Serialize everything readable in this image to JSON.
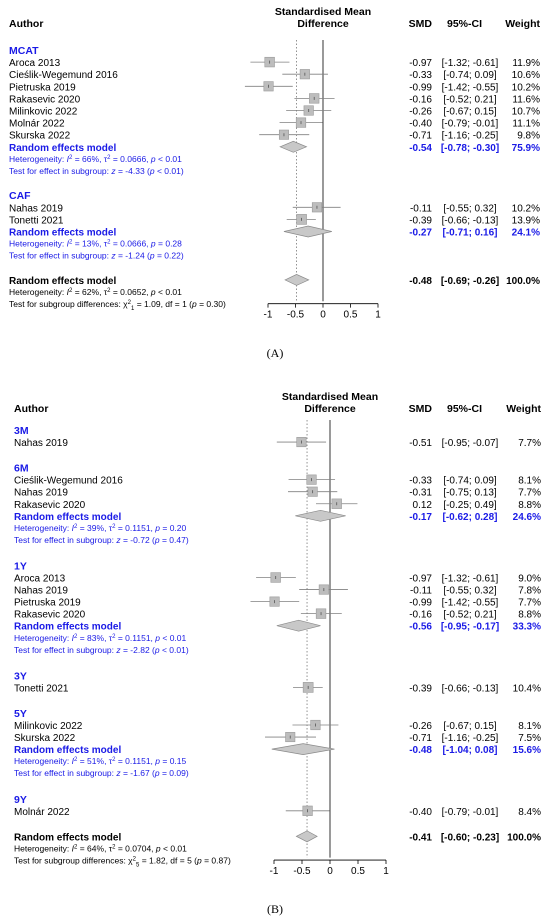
{
  "colors": {
    "subgroup_blue": "#1a1ae6",
    "box_fill": "#bdbdbd",
    "box_stroke": "#9a9a9a",
    "diamond_fill": "#c8c8c8",
    "diamond_stroke": "#8a8a8a",
    "line": "#808080",
    "text": "#000000"
  },
  "chart_data": [
    {
      "type": "forest",
      "panel_label": "(A)",
      "headers": {
        "author": "Author",
        "smd_title_line1": "Standardised Mean",
        "smd_title_line2": "Difference",
        "smd": "SMD",
        "ci": "95%-CI",
        "weight": "Weight"
      },
      "xlim": [
        -1,
        1
      ],
      "ticks": [
        -1,
        -0.5,
        0,
        0.5,
        1
      ],
      "tick_labels": [
        "-1",
        "-0.5",
        "0",
        "0.5",
        "1"
      ],
      "reference_line": 0,
      "overall_line": -0.48,
      "rows": [
        {
          "kind": "group",
          "label": "MCAT"
        },
        {
          "kind": "study",
          "label": "Aroca 2013",
          "smd": -0.97,
          "lo": -1.32,
          "hi": -0.61,
          "smd_text": "-0.97",
          "ci_text": "[-1.32; -0.61]",
          "weight_text": "11.9%",
          "weight": 11.9
        },
        {
          "kind": "study",
          "label": "Cieślik-Wegemund 2016",
          "smd": -0.33,
          "lo": -0.74,
          "hi": 0.09,
          "smd_text": "-0.33",
          "ci_text": "[-0.74; 0.09]",
          "weight_text": "10.6%",
          "weight": 10.6
        },
        {
          "kind": "study",
          "label": "Pietruska 2019",
          "smd": -0.99,
          "lo": -1.42,
          "hi": -0.55,
          "smd_text": "-0.99",
          "ci_text": "[-1.42; -0.55]",
          "weight_text": "10.2%",
          "weight": 10.2
        },
        {
          "kind": "study",
          "label": "Rakasevic 2020",
          "smd": -0.16,
          "lo": -0.52,
          "hi": 0.21,
          "smd_text": "-0.16",
          "ci_text": "[-0.52; 0.21]",
          "weight_text": "11.6%",
          "weight": 11.6
        },
        {
          "kind": "study",
          "label": "Milinkovic 2022",
          "smd": -0.26,
          "lo": -0.67,
          "hi": 0.15,
          "smd_text": "-0.26",
          "ci_text": "[-0.67; 0.15]",
          "weight_text": "10.7%",
          "weight": 10.7
        },
        {
          "kind": "study",
          "label": "Molnár 2022",
          "smd": -0.4,
          "lo": -0.79,
          "hi": -0.01,
          "smd_text": "-0.40",
          "ci_text": "[-0.79; -0.01]",
          "weight_text": "11.1%",
          "weight": 11.1
        },
        {
          "kind": "study",
          "label": "Skurska 2022",
          "smd": -0.71,
          "lo": -1.16,
          "hi": -0.25,
          "smd_text": "-0.71",
          "ci_text": "[-1.16; -0.25]",
          "weight_text": "9.8%",
          "weight": 9.8
        },
        {
          "kind": "pooled",
          "label": "Random effects model",
          "smd": -0.54,
          "lo": -0.78,
          "hi": -0.3,
          "smd_text": "-0.54",
          "ci_text": "[-0.78; -0.30]",
          "weight_text": "75.9%"
        },
        {
          "kind": "note",
          "segments": [
            {
              "t": "Heterogeneity: "
            },
            {
              "t": "I",
              "i": true
            },
            {
              "t": "2",
              "sup": true
            },
            {
              "t": " = 66%, τ"
            },
            {
              "t": "2",
              "sup": true
            },
            {
              "t": " = 0.0666, "
            },
            {
              "t": "p",
              "i": true
            },
            {
              "t": " < 0.01"
            }
          ]
        },
        {
          "kind": "note",
          "segments": [
            {
              "t": "Test for effect in subgroup: "
            },
            {
              "t": "z",
              "i": true
            },
            {
              "t": " = -4.33 ("
            },
            {
              "t": "p",
              "i": true
            },
            {
              "t": " < 0.01)"
            }
          ]
        },
        {
          "kind": "gap"
        },
        {
          "kind": "group",
          "label": "CAF"
        },
        {
          "kind": "study",
          "label": "Nahas 2019",
          "smd": -0.11,
          "lo": -0.55,
          "hi": 0.32,
          "smd_text": "-0.11",
          "ci_text": "[-0.55; 0.32]",
          "weight_text": "10.2%",
          "weight": 10.2
        },
        {
          "kind": "study",
          "label": "Tonetti 2021",
          "smd": -0.39,
          "lo": -0.66,
          "hi": -0.13,
          "smd_text": "-0.39",
          "ci_text": "[-0.66; -0.13]",
          "weight_text": "13.9%",
          "weight": 13.9
        },
        {
          "kind": "pooled",
          "label": "Random effects model",
          "smd": -0.27,
          "lo": -0.71,
          "hi": 0.16,
          "smd_text": "-0.27",
          "ci_text": "[-0.71; 0.16]",
          "weight_text": "24.1%"
        },
        {
          "kind": "note",
          "segments": [
            {
              "t": "Heterogeneity: "
            },
            {
              "t": "I",
              "i": true
            },
            {
              "t": "2",
              "sup": true
            },
            {
              "t": " = 13%, τ"
            },
            {
              "t": "2",
              "sup": true
            },
            {
              "t": " = 0.0666, "
            },
            {
              "t": "p",
              "i": true
            },
            {
              "t": " = 0.28"
            }
          ]
        },
        {
          "kind": "note",
          "segments": [
            {
              "t": "Test for effect in subgroup: "
            },
            {
              "t": "z",
              "i": true
            },
            {
              "t": " = -1.24 ("
            },
            {
              "t": "p",
              "i": true
            },
            {
              "t": " = 0.22)"
            }
          ]
        },
        {
          "kind": "gap"
        },
        {
          "kind": "overall",
          "label": "Random effects model",
          "smd": -0.48,
          "lo": -0.69,
          "hi": -0.26,
          "smd_text": "-0.48",
          "ci_text": "[-0.69; -0.26]",
          "weight_text": "100.0%"
        },
        {
          "kind": "fnote",
          "segments": [
            {
              "t": "Heterogeneity: "
            },
            {
              "t": "I",
              "i": true
            },
            {
              "t": "2",
              "sup": true
            },
            {
              "t": " = 62%, τ"
            },
            {
              "t": "2",
              "sup": true
            },
            {
              "t": " = 0.0652, "
            },
            {
              "t": "p",
              "i": true
            },
            {
              "t": " < 0.01"
            }
          ]
        },
        {
          "kind": "fnote",
          "segments": [
            {
              "t": "Test for subgroup differences: χ"
            },
            {
              "t": "2",
              "sup": true
            },
            {
              "t": "1",
              "sub": true
            },
            {
              "t": " = 1.09, df = 1 ("
            },
            {
              "t": "p",
              "i": true
            },
            {
              "t": " = 0.30)"
            }
          ]
        }
      ]
    },
    {
      "type": "forest",
      "panel_label": "(B)",
      "headers": {
        "author": "Author",
        "smd_title_line1": "Standardised Mean",
        "smd_title_line2": "Difference",
        "smd": "SMD",
        "ci": "95%-CI",
        "weight": "Weight"
      },
      "xlim": [
        -1,
        1
      ],
      "ticks": [
        -1,
        -0.5,
        0,
        0.5,
        1
      ],
      "tick_labels": [
        "-1",
        "-0.5",
        "0",
        "0.5",
        "1"
      ],
      "reference_line": 0,
      "overall_line": -0.41,
      "rows": [
        {
          "kind": "group",
          "label": "3M"
        },
        {
          "kind": "study",
          "label": "Nahas 2019",
          "smd": -0.51,
          "lo": -0.95,
          "hi": -0.07,
          "smd_text": "-0.51",
          "ci_text": "[-0.95; -0.07]",
          "weight_text": "7.7%",
          "weight": 7.7
        },
        {
          "kind": "gap"
        },
        {
          "kind": "group",
          "label": "6M"
        },
        {
          "kind": "study",
          "label": "Cieślik-Wegemund 2016",
          "smd": -0.33,
          "lo": -0.74,
          "hi": 0.09,
          "smd_text": "-0.33",
          "ci_text": "[-0.74; 0.09]",
          "weight_text": "8.1%",
          "weight": 8.1
        },
        {
          "kind": "study",
          "label": "Nahas 2019",
          "smd": -0.31,
          "lo": -0.75,
          "hi": 0.13,
          "smd_text": "-0.31",
          "ci_text": "[-0.75; 0.13]",
          "weight_text": "7.7%",
          "weight": 7.7
        },
        {
          "kind": "study",
          "label": "Rakasevic 2020",
          "smd": 0.12,
          "lo": -0.25,
          "hi": 0.49,
          "smd_text": "0.12",
          "ci_text": "[-0.25; 0.49]",
          "weight_text": "8.8%",
          "weight": 8.8
        },
        {
          "kind": "pooled",
          "label": "Random effects model",
          "smd": -0.17,
          "lo": -0.62,
          "hi": 0.28,
          "smd_text": "-0.17",
          "ci_text": "[-0.62; 0.28]",
          "weight_text": "24.6%"
        },
        {
          "kind": "note",
          "segments": [
            {
              "t": "Heterogeneity: "
            },
            {
              "t": "I",
              "i": true
            },
            {
              "t": "2",
              "sup": true
            },
            {
              "t": " = 39%, τ"
            },
            {
              "t": "2",
              "sup": true
            },
            {
              "t": " = 0.1151, "
            },
            {
              "t": "p",
              "i": true
            },
            {
              "t": " = 0.20"
            }
          ]
        },
        {
          "kind": "note",
          "segments": [
            {
              "t": "Test for effect in subgroup: "
            },
            {
              "t": "z",
              "i": true
            },
            {
              "t": " = -0.72 ("
            },
            {
              "t": "p",
              "i": true
            },
            {
              "t": " = 0.47)"
            }
          ]
        },
        {
          "kind": "gap"
        },
        {
          "kind": "group",
          "label": "1Y"
        },
        {
          "kind": "study",
          "label": "Aroca 2013",
          "smd": -0.97,
          "lo": -1.32,
          "hi": -0.61,
          "smd_text": "-0.97",
          "ci_text": "[-1.32; -0.61]",
          "weight_text": "9.0%",
          "weight": 9.0
        },
        {
          "kind": "study",
          "label": "Nahas 2019",
          "smd": -0.11,
          "lo": -0.55,
          "hi": 0.32,
          "smd_text": "-0.11",
          "ci_text": "[-0.55; 0.32]",
          "weight_text": "7.8%",
          "weight": 7.8
        },
        {
          "kind": "study",
          "label": "Pietruska 2019",
          "smd": -0.99,
          "lo": -1.42,
          "hi": -0.55,
          "smd_text": "-0.99",
          "ci_text": "[-1.42; -0.55]",
          "weight_text": "7.7%",
          "weight": 7.7
        },
        {
          "kind": "study",
          "label": "Rakasevic 2020",
          "smd": -0.16,
          "lo": -0.52,
          "hi": 0.21,
          "smd_text": "-0.16",
          "ci_text": "[-0.52; 0.21]",
          "weight_text": "8.8%",
          "weight": 8.8
        },
        {
          "kind": "pooled",
          "label": "Random effects model",
          "smd": -0.56,
          "lo": -0.95,
          "hi": -0.17,
          "smd_text": "-0.56",
          "ci_text": "[-0.95; -0.17]",
          "weight_text": "33.3%"
        },
        {
          "kind": "note",
          "segments": [
            {
              "t": "Heterogeneity: "
            },
            {
              "t": "I",
              "i": true
            },
            {
              "t": "2",
              "sup": true
            },
            {
              "t": " = 83%, τ"
            },
            {
              "t": "2",
              "sup": true
            },
            {
              "t": " = 0.1151, "
            },
            {
              "t": "p",
              "i": true
            },
            {
              "t": " < 0.01"
            }
          ]
        },
        {
          "kind": "note",
          "segments": [
            {
              "t": "Test for effect in subgroup: "
            },
            {
              "t": "z",
              "i": true
            },
            {
              "t": " = -2.82 ("
            },
            {
              "t": "p",
              "i": true
            },
            {
              "t": " < 0.01)"
            }
          ]
        },
        {
          "kind": "gap"
        },
        {
          "kind": "group",
          "label": "3Y"
        },
        {
          "kind": "study",
          "label": "Tonetti 2021",
          "smd": -0.39,
          "lo": -0.66,
          "hi": -0.13,
          "smd_text": "-0.39",
          "ci_text": "[-0.66; -0.13]",
          "weight_text": "10.4%",
          "weight": 10.4
        },
        {
          "kind": "gap"
        },
        {
          "kind": "group",
          "label": "5Y"
        },
        {
          "kind": "study",
          "label": "Milinkovic 2022",
          "smd": -0.26,
          "lo": -0.67,
          "hi": 0.15,
          "smd_text": "-0.26",
          "ci_text": "[-0.67; 0.15]",
          "weight_text": "8.1%",
          "weight": 8.1
        },
        {
          "kind": "study",
          "label": "Skurska 2022",
          "smd": -0.71,
          "lo": -1.16,
          "hi": -0.25,
          "smd_text": "-0.71",
          "ci_text": "[-1.16; -0.25]",
          "weight_text": "7.5%",
          "weight": 7.5
        },
        {
          "kind": "pooled",
          "label": "Random effects model",
          "smd": -0.48,
          "lo": -1.04,
          "hi": 0.08,
          "smd_text": "-0.48",
          "ci_text": "[-1.04; 0.08]",
          "weight_text": "15.6%"
        },
        {
          "kind": "note",
          "segments": [
            {
              "t": "Heterogeneity: "
            },
            {
              "t": "I",
              "i": true
            },
            {
              "t": "2",
              "sup": true
            },
            {
              "t": " = 51%, τ"
            },
            {
              "t": "2",
              "sup": true
            },
            {
              "t": " = 0.1151, "
            },
            {
              "t": "p",
              "i": true
            },
            {
              "t": " = 0.15"
            }
          ]
        },
        {
          "kind": "note",
          "segments": [
            {
              "t": "Test for effect in subgroup: "
            },
            {
              "t": "z",
              "i": true
            },
            {
              "t": " = -1.67 ("
            },
            {
              "t": "p",
              "i": true
            },
            {
              "t": " = 0.09)"
            }
          ]
        },
        {
          "kind": "gap"
        },
        {
          "kind": "group",
          "label": "9Y"
        },
        {
          "kind": "study",
          "label": "Molnár 2022",
          "smd": -0.4,
          "lo": -0.79,
          "hi": -0.01,
          "smd_text": "-0.40",
          "ci_text": "[-0.79; -0.01]",
          "weight_text": "8.4%",
          "weight": 8.4
        },
        {
          "kind": "gap"
        },
        {
          "kind": "overall",
          "label": "Random effects model",
          "smd": -0.41,
          "lo": -0.6,
          "hi": -0.23,
          "smd_text": "-0.41",
          "ci_text": "[-0.60; -0.23]",
          "weight_text": "100.0%"
        },
        {
          "kind": "fnote",
          "segments": [
            {
              "t": "Heterogeneity: "
            },
            {
              "t": "I",
              "i": true
            },
            {
              "t": "2",
              "sup": true
            },
            {
              "t": " = 64%, τ"
            },
            {
              "t": "2",
              "sup": true
            },
            {
              "t": " = 0.0704, "
            },
            {
              "t": "p",
              "i": true
            },
            {
              "t": " < 0.01"
            }
          ]
        },
        {
          "kind": "fnote",
          "segments": [
            {
              "t": "Test for subgroup differences: χ"
            },
            {
              "t": "2",
              "sup": true
            },
            {
              "t": "5",
              "sub": true
            },
            {
              "t": " = 1.82, df = 5 ("
            },
            {
              "t": "p",
              "i": true
            },
            {
              "t": " = 0.87)"
            }
          ]
        }
      ]
    }
  ]
}
